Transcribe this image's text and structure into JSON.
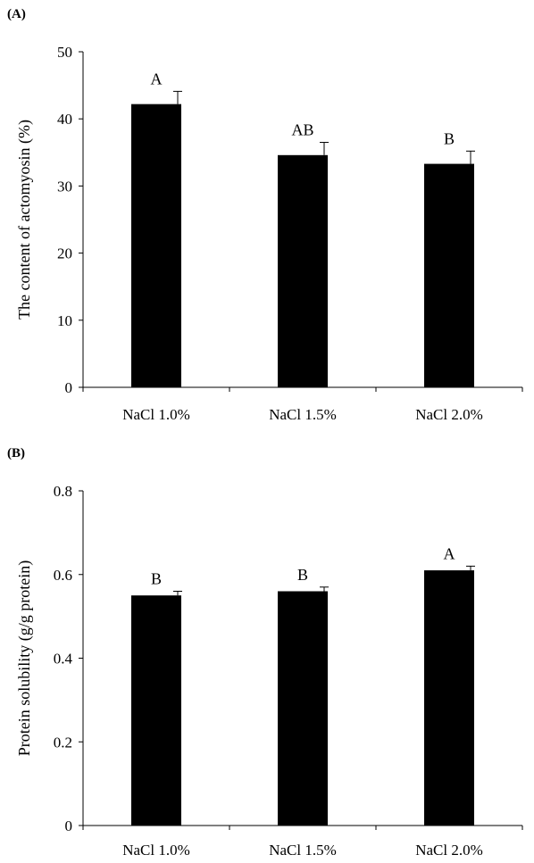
{
  "chart_data": [
    {
      "type": "bar",
      "panel_label": "(A)",
      "categories": [
        "NaCl 1.0%",
        "NaCl 1.5%",
        "NaCl 2.0%"
      ],
      "values": [
        42.2,
        34.6,
        33.3
      ],
      "errors": [
        1.9,
        1.9,
        1.9
      ],
      "significance": [
        "A",
        "AB",
        "B"
      ],
      "ylabel": "The content of actomyosin (%)",
      "ylim": [
        0,
        50
      ],
      "yticks": [
        0,
        10,
        20,
        30,
        40,
        50
      ],
      "ytick_labels": [
        "0",
        "10",
        "20",
        "30",
        "40",
        "50"
      ],
      "bar_color": "#000000",
      "grid": false
    },
    {
      "type": "bar",
      "panel_label": "(B)",
      "categories": [
        "NaCl 1.0%",
        "NaCl 1.5%",
        "NaCl 2.0%"
      ],
      "values": [
        0.55,
        0.56,
        0.61
      ],
      "errors": [
        0.01,
        0.01,
        0.01
      ],
      "significance": [
        "B",
        "B",
        "A"
      ],
      "ylabel": "Protein solubility (g/g protein)",
      "ylim": [
        0,
        0.8
      ],
      "yticks": [
        0,
        0.2,
        0.4,
        0.6,
        0.8
      ],
      "ytick_labels": [
        "0",
        "0.2",
        "0.4",
        "0.6",
        "0.8"
      ],
      "bar_color": "#000000",
      "grid": false
    }
  ]
}
